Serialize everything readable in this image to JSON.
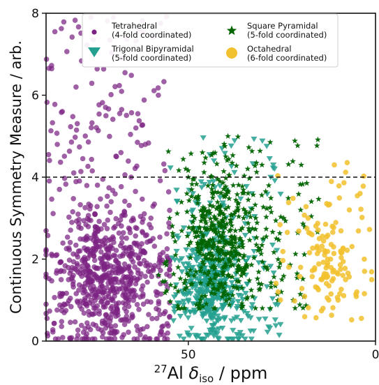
{
  "chart_data": {
    "type": "scatter",
    "title": "",
    "xlabel": {
      "sup": "27",
      "main": "Al ",
      "delta": "δ",
      "sub": "iso",
      "unit": " / ppm"
    },
    "ylabel": "Continuous Symmetry Measure / arb.",
    "xlim": [
      88,
      0
    ],
    "ylim": [
      0,
      8
    ],
    "x_ticks": [
      50,
      0
    ],
    "x_tick_labels": [
      "50",
      "0"
    ],
    "y_ticks": [
      0,
      2,
      4,
      6,
      8
    ],
    "y_tick_labels": [
      "0",
      "2",
      "4",
      "6",
      "8"
    ],
    "grid": false,
    "legend_position": "top",
    "reference_line": {
      "y": 4,
      "style": "dashed"
    },
    "series": [
      {
        "key": "tetrahedral",
        "name": "Tetrahedral\n(4-fold coordinated)",
        "marker": "circle",
        "color": "#7B2382",
        "summary": {
          "x_range": [
            55,
            88
          ],
          "y_range": [
            0,
            8
          ],
          "dense_region": {
            "x": [
              57,
              86
            ],
            "y": [
              0.3,
              3
            ]
          }
        },
        "points": [
          [
            82,
            1.5
          ],
          [
            78,
            2.0
          ],
          [
            74,
            1.2
          ],
          [
            70,
            2.5
          ],
          [
            66,
            1.8
          ],
          [
            62,
            0.9
          ],
          [
            60,
            3.0
          ],
          [
            72,
            5.5
          ],
          [
            80,
            6.2
          ],
          [
            68,
            4.6
          ],
          [
            64,
            5.2
          ],
          [
            58,
            6.0
          ],
          [
            76,
            7.9
          ],
          [
            70,
            7.9
          ],
          [
            85,
            4.8
          ],
          [
            62,
            2.2
          ],
          [
            56,
            1.4
          ]
        ]
      },
      {
        "key": "trigonal_bipyramidal",
        "name": "Trigonal Bipyramidal\n(5-fold coordinated)",
        "marker": "triangle-down",
        "color": "#23A08F",
        "summary": {
          "x_range": [
            25,
            55
          ],
          "y_range": [
            0,
            5
          ],
          "dense_region": {
            "x": [
              35,
              52
            ],
            "y": [
              0.3,
              2.5
            ]
          }
        },
        "points": [
          [
            45,
            1.2
          ],
          [
            42,
            0.5
          ],
          [
            48,
            2.0
          ],
          [
            40,
            1.8
          ],
          [
            38,
            3.0
          ],
          [
            44,
            0.2
          ],
          [
            50,
            1.0
          ],
          [
            36,
            2.4
          ],
          [
            47,
            0.8
          ],
          [
            33,
            3.6
          ],
          [
            28,
            4.0
          ],
          [
            41,
            4.7
          ]
        ]
      },
      {
        "key": "square_pyramidal",
        "name": "Square Pyramidal\n(5-fold coordinated)",
        "marker": "star",
        "color": "#006400",
        "summary": {
          "x_range": [
            15,
            58
          ],
          "y_range": [
            0.8,
            5
          ],
          "dense_region": {
            "x": [
              30,
              52
            ],
            "y": [
              1,
              4
            ]
          }
        },
        "points": [
          [
            46,
            3.0
          ],
          [
            42,
            2.2
          ],
          [
            38,
            3.8
          ],
          [
            35,
            1.8
          ],
          [
            50,
            4.0
          ],
          [
            30,
            2.5
          ],
          [
            25,
            1.5
          ],
          [
            40,
            4.5
          ],
          [
            44,
            1.5
          ],
          [
            32,
            3.0
          ],
          [
            22,
            1.0
          ],
          [
            20,
            3.2
          ],
          [
            55,
            3.0
          ]
        ]
      },
      {
        "key": "octahedral",
        "name": "Octahedral\n(6-fold coordinated)",
        "marker": "circle",
        "color": "#F2C12E",
        "summary": {
          "x_range": [
            0,
            28
          ],
          "y_range": [
            0.5,
            4.5
          ],
          "dense_region": {
            "x": [
              5,
              20
            ],
            "y": [
              1,
              3
            ]
          }
        },
        "points": [
          [
            12,
            2.0
          ],
          [
            8,
            1.5
          ],
          [
            15,
            2.5
          ],
          [
            5,
            1.2
          ],
          [
            18,
            3.0
          ],
          [
            10,
            1.0
          ],
          [
            3,
            2.0
          ],
          [
            20,
            1.8
          ],
          [
            7,
            3.2
          ],
          [
            14,
            0.8
          ],
          [
            11,
            4.3
          ],
          [
            26,
            1.2
          ],
          [
            1,
            1.5
          ]
        ]
      }
    ]
  }
}
